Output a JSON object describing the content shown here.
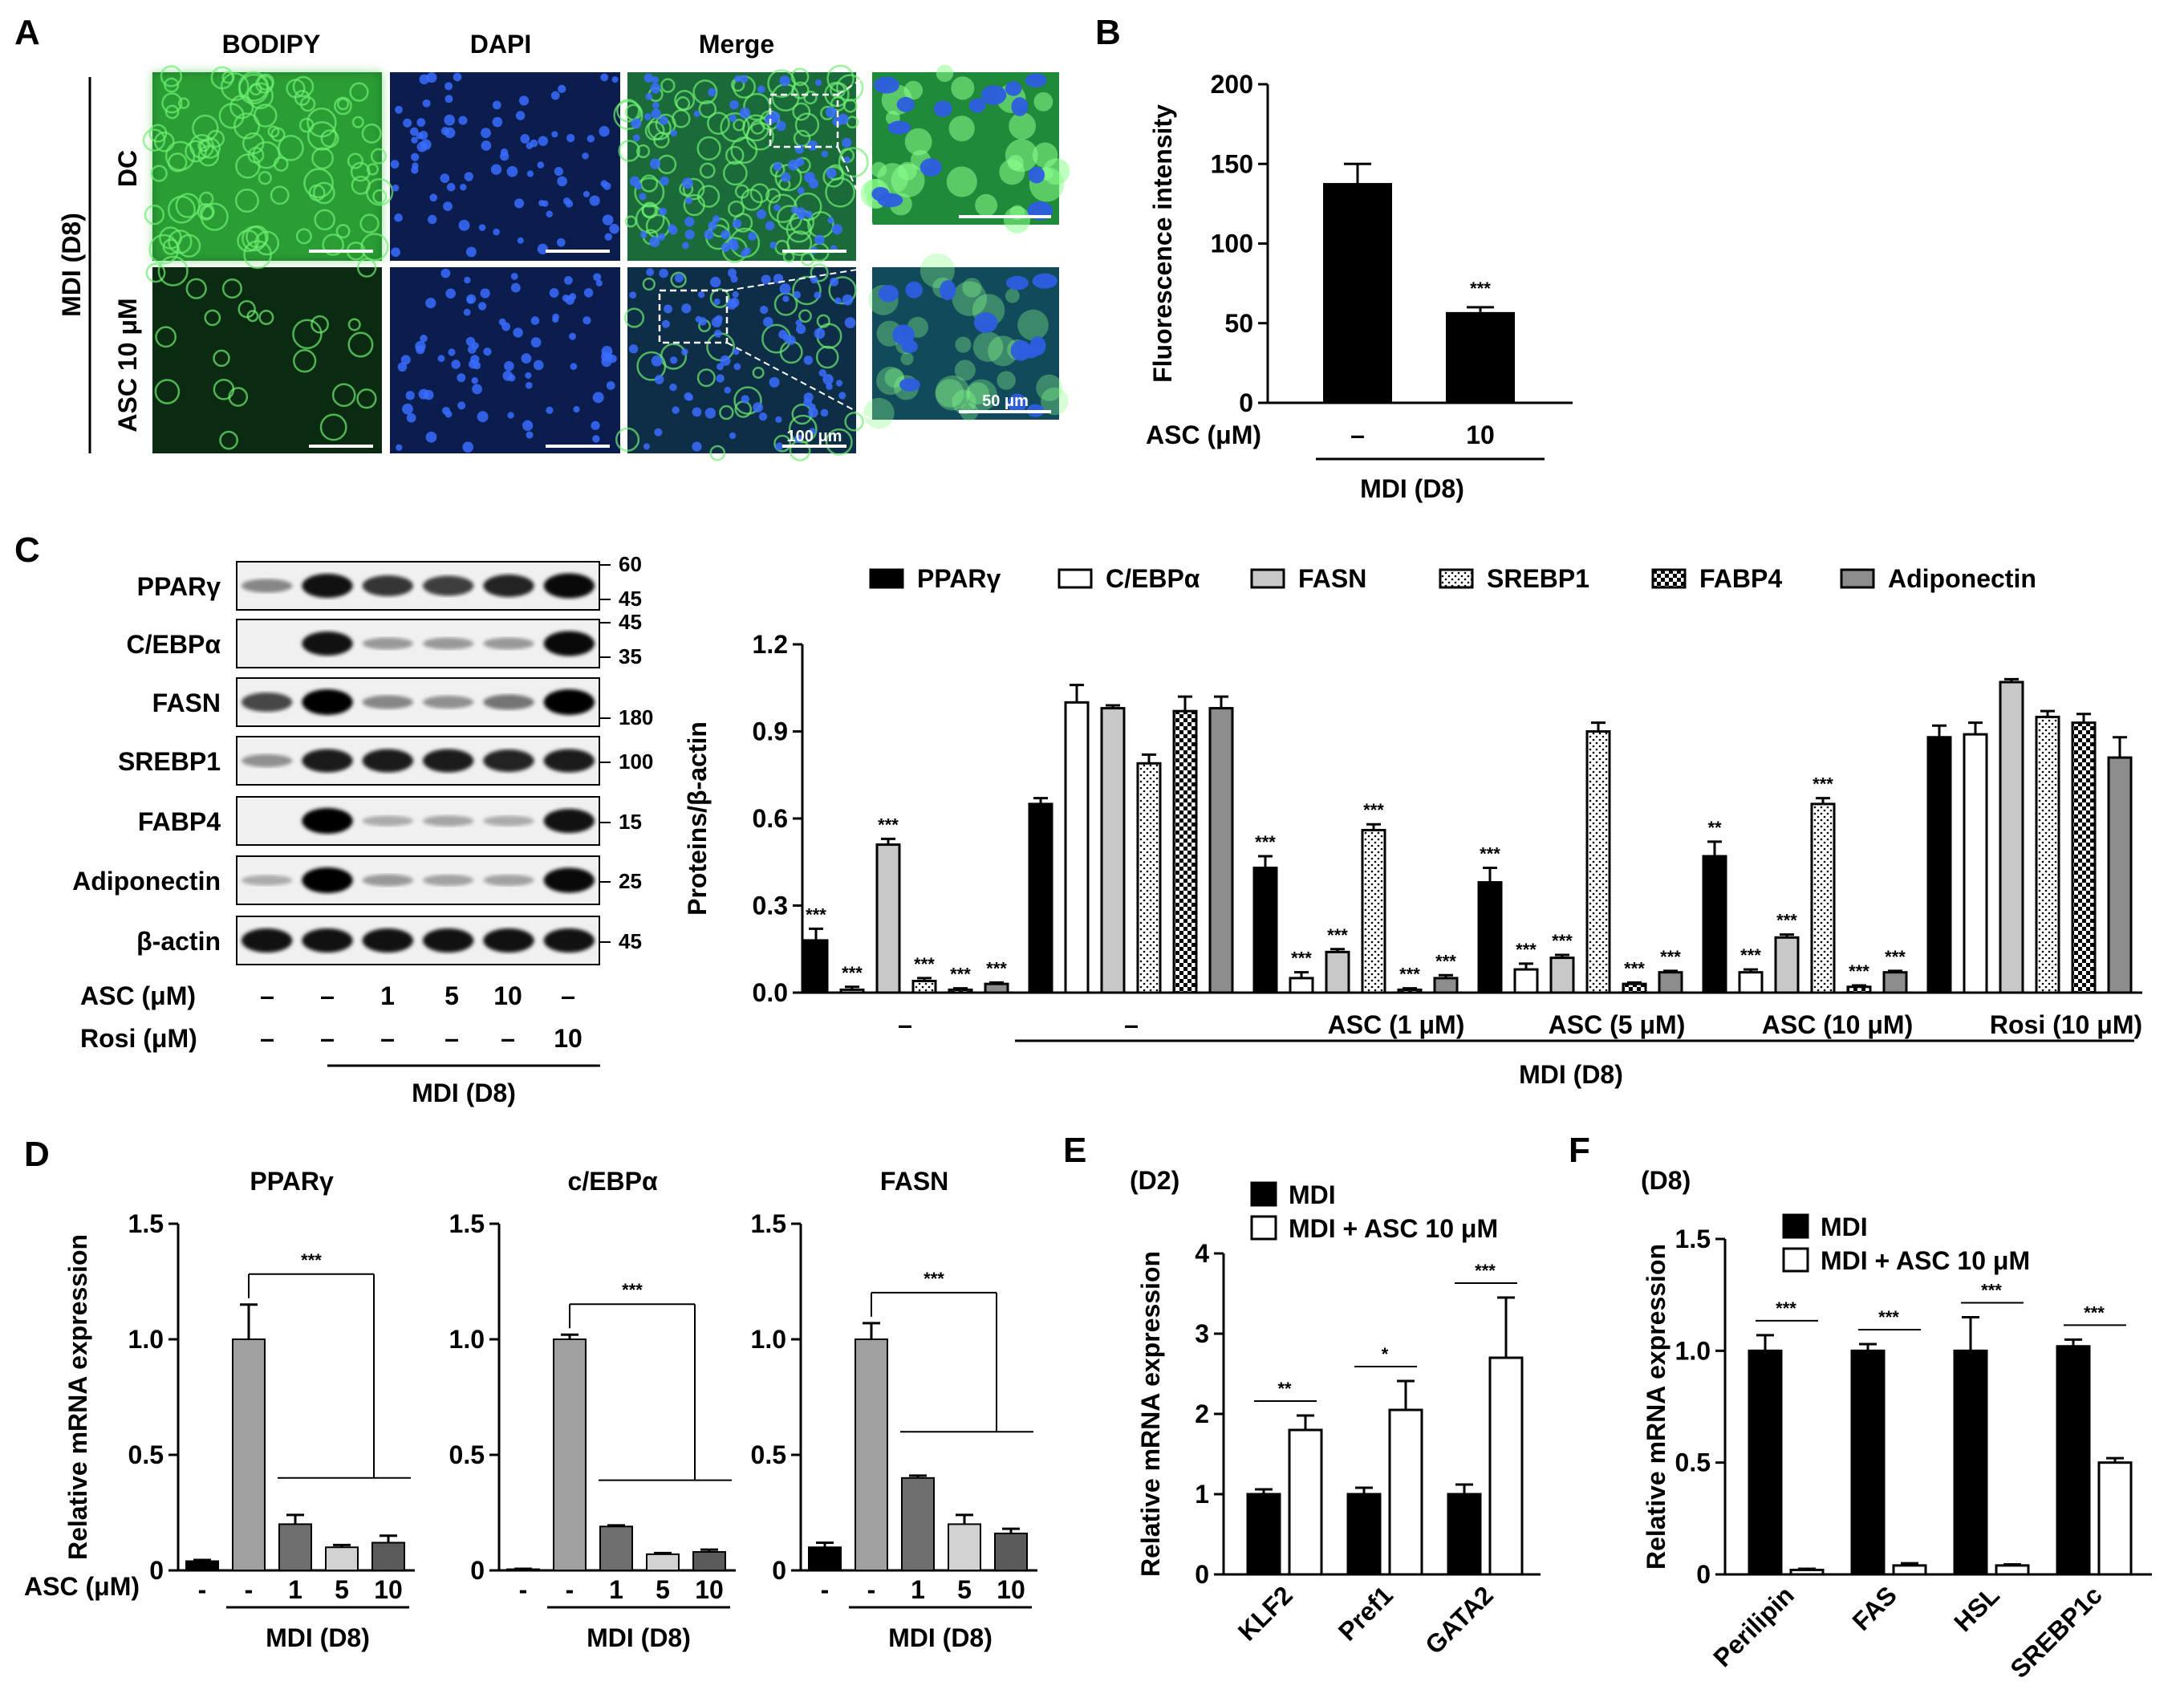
{
  "panels": {
    "A": {
      "label": "A",
      "columns": [
        "BODIPY",
        "DAPI",
        "Merge"
      ],
      "rows": [
        "DC",
        "ASC 10 μM"
      ],
      "group": "MDI (D8)",
      "scale_100": "100 μm",
      "scale_50": "50 μm"
    },
    "B": {
      "label": "B",
      "xvar": "ASC (μM)",
      "group": "MDI (D8)"
    },
    "C": {
      "label": "C",
      "blot_rows": [
        {
          "name": "PPARγ",
          "mw": [
            "60",
            "45"
          ]
        },
        {
          "name": "C/EBPα",
          "mw": [
            "45",
            "35"
          ]
        },
        {
          "name": "FASN",
          "mw": [
            "180"
          ]
        },
        {
          "name": "SREBP1",
          "mw": [
            "100"
          ]
        },
        {
          "name": "FABP4",
          "mw": [
            "15"
          ]
        },
        {
          "name": "Adiponectin",
          "mw": [
            "25"
          ]
        },
        {
          "name": "β-actin",
          "mw": [
            "45"
          ]
        }
      ],
      "asc_label": "ASC (μM)",
      "asc_values": [
        "–",
        "–",
        "1",
        "5",
        "10",
        "–"
      ],
      "rosi_label": "Rosi (μM)",
      "rosi_values": [
        "–",
        "–",
        "–",
        "–",
        "–",
        "10"
      ],
      "group": "MDI (D8)",
      "chart_group": "MDI (D8)"
    },
    "D": {
      "label": "D",
      "xvar": "ASC (μM)",
      "group": "MDI (D8)"
    },
    "E": {
      "label": "E",
      "stage": "(D2)"
    },
    "F": {
      "label": "F",
      "stage": "(D8)"
    }
  },
  "chart_data": [
    {
      "id": "B",
      "type": "bar",
      "categories": [
        "–",
        "10"
      ],
      "values": [
        138,
        57
      ],
      "errors": [
        12,
        3
      ],
      "significance": [
        "",
        "***"
      ],
      "ylabel": "Fluorescence intensity",
      "ylim": [
        0,
        200
      ],
      "yticks": [
        0,
        50,
        100,
        150,
        200
      ],
      "colors": [
        "#000000",
        "#000000"
      ]
    },
    {
      "id": "C",
      "type": "bar",
      "ylabel": "Proteins/β-actin",
      "ylim": [
        0,
        1.2
      ],
      "yticks": [
        "0.0",
        "0.3",
        "0.6",
        "0.9",
        "1.2"
      ],
      "categories": [
        "–",
        "–",
        "ASC (1 μM)",
        "ASC (5 μM)",
        "ASC (10 μM)",
        "Rosi (10 μM)"
      ],
      "series": [
        {
          "name": "PPARγ",
          "fill": "#000000",
          "pattern": "solid",
          "values": [
            0.18,
            0.65,
            0.43,
            0.38,
            0.47,
            0.88
          ],
          "errors": [
            0.04,
            0.02,
            0.04,
            0.05,
            0.05,
            0.04
          ],
          "sig": [
            "***",
            "",
            "***",
            "***",
            "**",
            ""
          ]
        },
        {
          "name": "C/EBPα",
          "fill": "#ffffff",
          "pattern": "solid",
          "values": [
            0.01,
            1.0,
            0.05,
            0.08,
            0.07,
            0.89
          ],
          "errors": [
            0.01,
            0.06,
            0.02,
            0.02,
            0.01,
            0.04
          ],
          "sig": [
            "***",
            "",
            "***",
            "***",
            "***",
            ""
          ]
        },
        {
          "name": "FASN",
          "fill": "#c8c8c8",
          "pattern": "solid",
          "values": [
            0.51,
            0.98,
            0.14,
            0.12,
            0.19,
            1.07
          ],
          "errors": [
            0.02,
            0.01,
            0.01,
            0.01,
            0.01,
            0.01
          ],
          "sig": [
            "***",
            "",
            "***",
            "***",
            "***",
            ""
          ]
        },
        {
          "name": "SREBP1",
          "fill": "#ffffff",
          "pattern": "dots",
          "values": [
            0.04,
            0.79,
            0.56,
            0.9,
            0.65,
            0.95
          ],
          "errors": [
            0.01,
            0.03,
            0.02,
            0.03,
            0.02,
            0.02
          ],
          "sig": [
            "***",
            "",
            "***",
            "",
            "***",
            ""
          ]
        },
        {
          "name": "FABP4",
          "fill": "#000000",
          "pattern": "checker",
          "values": [
            0.01,
            0.97,
            0.01,
            0.03,
            0.02,
            0.93
          ],
          "errors": [
            0.005,
            0.05,
            0.005,
            0.005,
            0.005,
            0.03
          ],
          "sig": [
            "***",
            "",
            "***",
            "***",
            "***",
            ""
          ]
        },
        {
          "name": "Adiponectin",
          "fill": "#8c8c8c",
          "pattern": "solid",
          "values": [
            0.03,
            0.98,
            0.05,
            0.07,
            0.07,
            0.81
          ],
          "errors": [
            0.005,
            0.04,
            0.01,
            0.005,
            0.005,
            0.07
          ],
          "sig": [
            "***",
            "",
            "***",
            "***",
            "***",
            ""
          ]
        }
      ]
    },
    {
      "id": "D1",
      "type": "bar",
      "title": "PPARγ",
      "ylabel": "Relative mRNA expression",
      "ylim": [
        0,
        1.5
      ],
      "yticks": [
        "0",
        "0.5",
        "1.0",
        "1.5"
      ],
      "categories": [
        "-",
        "-",
        "1",
        "5",
        "10"
      ],
      "values": [
        0.04,
        1.0,
        0.2,
        0.1,
        0.12
      ],
      "errors": [
        0.005,
        0.15,
        0.04,
        0.01,
        0.03
      ],
      "colors": [
        "#000000",
        "#a0a0a0",
        "#6e6e6e",
        "#d2d2d2",
        "#5a5a5a"
      ],
      "significance": "***"
    },
    {
      "id": "D2",
      "type": "bar",
      "title": "c/EBPα",
      "ylabel": "",
      "ylim": [
        0,
        1.5
      ],
      "yticks": [
        "0",
        "0.5",
        "1.0",
        "1.5"
      ],
      "categories": [
        "-",
        "-",
        "1",
        "5",
        "10"
      ],
      "values": [
        0.005,
        1.0,
        0.19,
        0.07,
        0.08
      ],
      "errors": [
        0.002,
        0.02,
        0.005,
        0.005,
        0.01
      ],
      "colors": [
        "#000000",
        "#a0a0a0",
        "#6e6e6e",
        "#d2d2d2",
        "#5a5a5a"
      ],
      "significance": "***"
    },
    {
      "id": "D3",
      "type": "bar",
      "title": "FASN",
      "ylabel": "",
      "ylim": [
        0,
        1.5
      ],
      "yticks": [
        "0",
        "0.5",
        "1.0",
        "1.5"
      ],
      "categories": [
        "-",
        "-",
        "1",
        "5",
        "10"
      ],
      "values": [
        0.1,
        1.0,
        0.4,
        0.2,
        0.16
      ],
      "errors": [
        0.02,
        0.07,
        0.01,
        0.04,
        0.02
      ],
      "colors": [
        "#000000",
        "#a0a0a0",
        "#6e6e6e",
        "#d2d2d2",
        "#5a5a5a"
      ],
      "significance": "***"
    },
    {
      "id": "E",
      "type": "bar",
      "ylabel": "Relative mRNA expression",
      "ylim": [
        0,
        4
      ],
      "yticks": [
        "0",
        "1",
        "2",
        "3",
        "4"
      ],
      "categories": [
        "KLF2",
        "Pref1",
        "GATA2"
      ],
      "series": [
        {
          "name": "MDI",
          "fill": "#000000",
          "values": [
            1.0,
            1.0,
            1.0
          ],
          "errors": [
            0.06,
            0.08,
            0.12
          ]
        },
        {
          "name": "MDI + ASC 10 μM",
          "fill": "#ffffff",
          "values": [
            1.8,
            2.05,
            2.7
          ],
          "errors": [
            0.18,
            0.36,
            0.75
          ]
        }
      ],
      "significance": [
        "**",
        "*",
        "***"
      ]
    },
    {
      "id": "F",
      "type": "bar",
      "ylabel": "Relative mRNA expression",
      "ylim": [
        0,
        1.5
      ],
      "yticks": [
        "0",
        "0.5",
        "1.0",
        "1.5"
      ],
      "categories": [
        "Perilipin",
        "FAS",
        "HSL",
        "SREBP1c"
      ],
      "series": [
        {
          "name": "MDI",
          "fill": "#000000",
          "values": [
            1.0,
            1.0,
            1.0,
            1.02
          ],
          "errors": [
            0.07,
            0.03,
            0.15,
            0.03
          ]
        },
        {
          "name": "MDI + ASC 10 μM",
          "fill": "#ffffff",
          "values": [
            0.02,
            0.04,
            0.04,
            0.5
          ],
          "errors": [
            0.005,
            0.01,
            0.005,
            0.02
          ]
        }
      ],
      "significance": [
        "***",
        "***",
        "***",
        "***"
      ]
    }
  ]
}
